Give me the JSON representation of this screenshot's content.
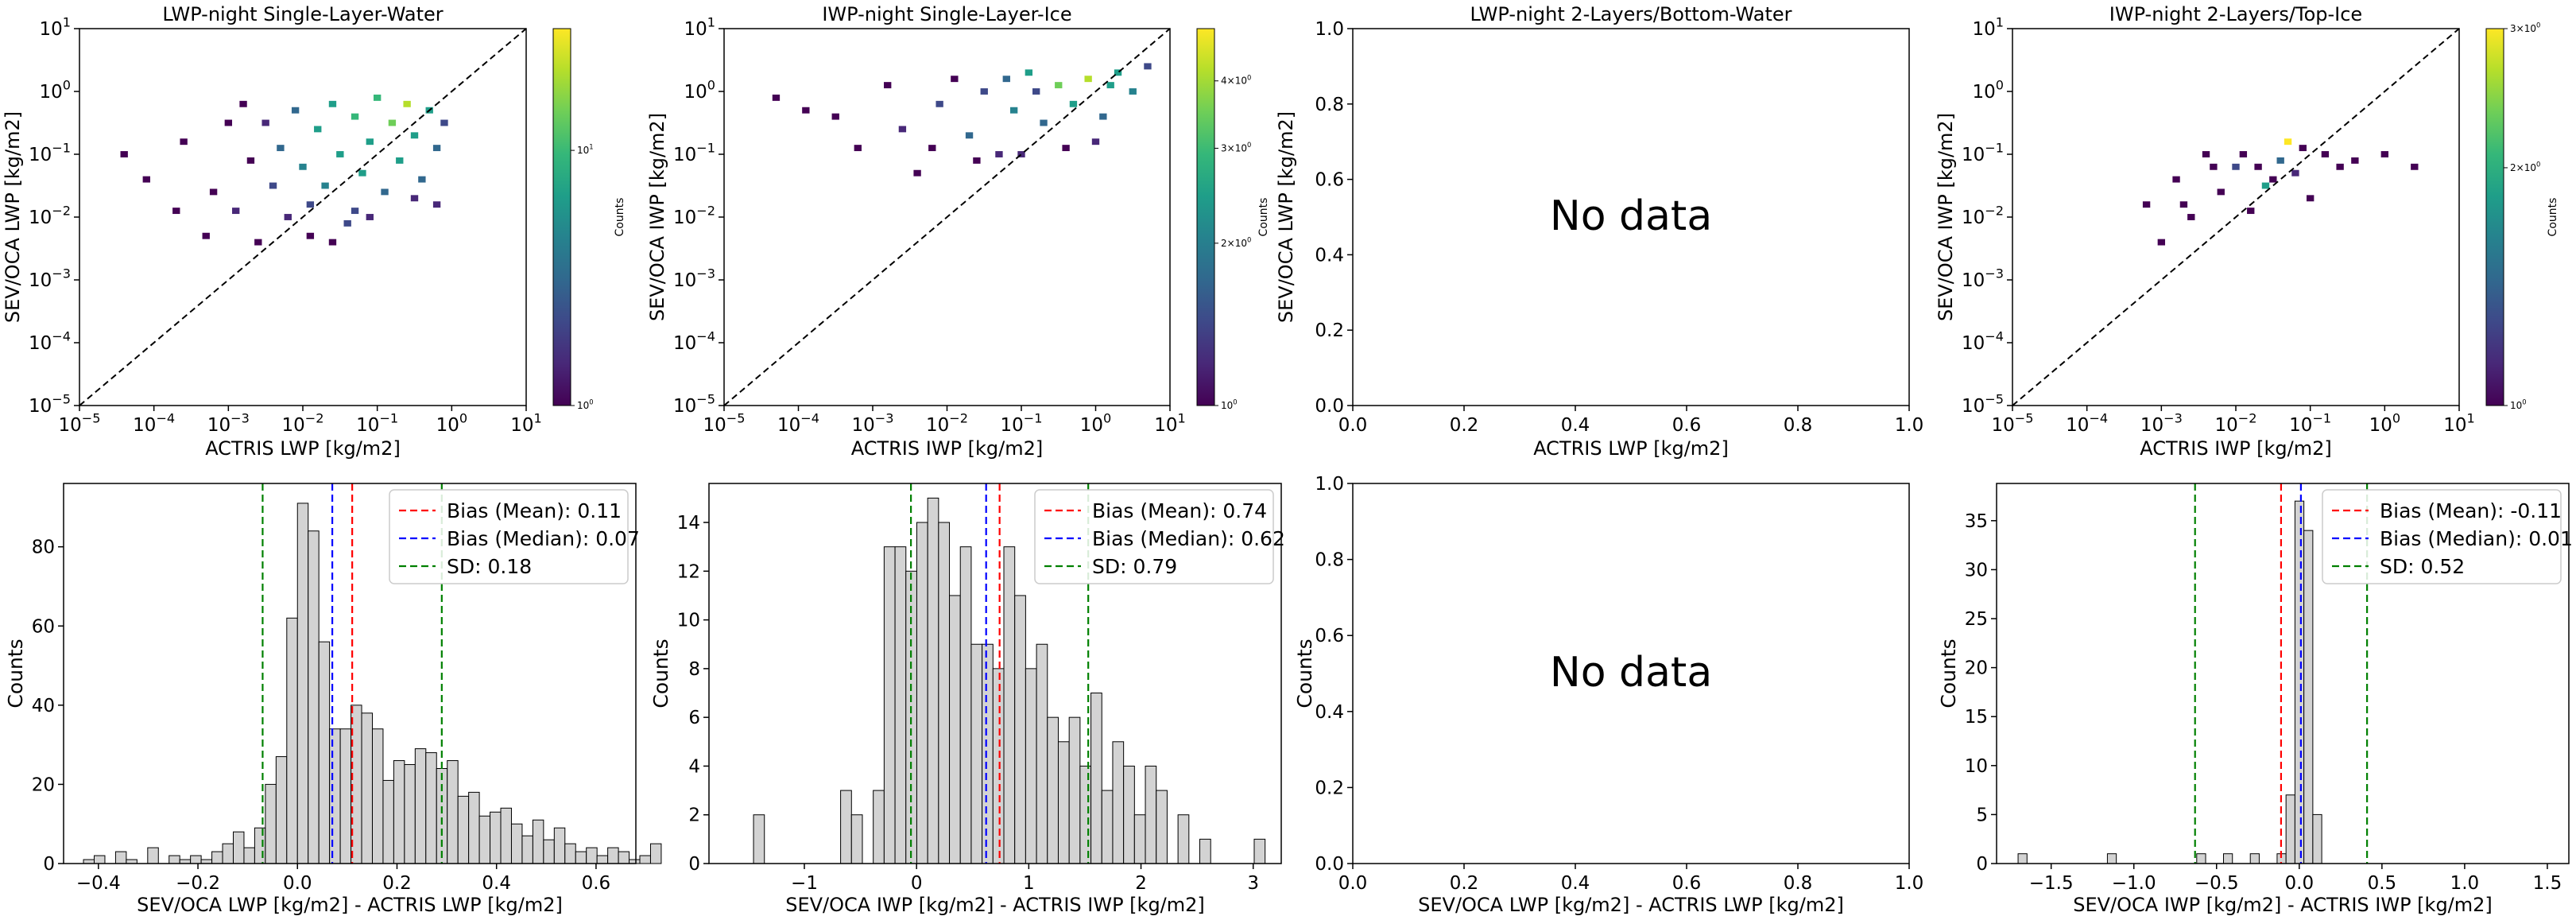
{
  "colors": {
    "hist_fill": "#d3d3d3",
    "hist_edge": "#000000",
    "mean": "#ff0000",
    "median": "#0000ff",
    "sd": "#008000",
    "viridis": [
      "#440154",
      "#482878",
      "#3e4989",
      "#31688e",
      "#26828e",
      "#1f9e89",
      "#35b779",
      "#6ece58",
      "#b5de2b",
      "#fde725"
    ]
  },
  "chart_data": [
    {
      "type": "heatmap",
      "title": "LWP-night Single-Layer-Water",
      "xlabel": "ACTRIS LWP [kg/m2]",
      "ylabel": "SEV/OCA LWP [kg/m2]",
      "xscale": "log",
      "yscale": "log",
      "xlim": [
        1e-05,
        10
      ],
      "ylim": [
        1e-05,
        10
      ],
      "xticks": [
        "10^-5",
        "10^-4",
        "10^-3",
        "10^-2",
        "10^-1",
        "10^0",
        "10^1"
      ],
      "yticks": [
        "10^-5",
        "10^-4",
        "10^-3",
        "10^-2",
        "10^-1",
        "10^0",
        "10^1"
      ],
      "one_to_one_line": true,
      "colorbar": {
        "label": "Counts",
        "scale": "log",
        "range": [
          1,
          30
        ],
        "ticks": [
          "10^0",
          "10^1"
        ]
      },
      "cells": [
        {
          "x": -4.4,
          "y": -1.0,
          "c": 0.0
        },
        {
          "x": -4.1,
          "y": -1.4,
          "c": 0.0
        },
        {
          "x": -3.7,
          "y": -1.9,
          "c": 0.0
        },
        {
          "x": -3.6,
          "y": -0.8,
          "c": 0.0
        },
        {
          "x": -3.3,
          "y": -2.3,
          "c": 0.0
        },
        {
          "x": -3.2,
          "y": -1.6,
          "c": 0.0
        },
        {
          "x": -3.0,
          "y": -0.5,
          "c": 0.0
        },
        {
          "x": -2.9,
          "y": -1.9,
          "c": 0.1
        },
        {
          "x": -2.7,
          "y": -1.1,
          "c": 0.0
        },
        {
          "x": -2.6,
          "y": -2.4,
          "c": 0.0
        },
        {
          "x": -2.5,
          "y": -0.5,
          "c": 0.1
        },
        {
          "x": -2.4,
          "y": -1.5,
          "c": 0.2
        },
        {
          "x": -2.3,
          "y": -0.9,
          "c": 0.3
        },
        {
          "x": -2.2,
          "y": -2.0,
          "c": 0.1
        },
        {
          "x": -2.1,
          "y": -0.3,
          "c": 0.3
        },
        {
          "x": -2.0,
          "y": -1.2,
          "c": 0.4
        },
        {
          "x": -1.9,
          "y": -1.8,
          "c": 0.2
        },
        {
          "x": -1.8,
          "y": -0.6,
          "c": 0.5
        },
        {
          "x": -1.7,
          "y": -1.5,
          "c": 0.4
        },
        {
          "x": -1.6,
          "y": -0.2,
          "c": 0.6
        },
        {
          "x": -1.5,
          "y": -1.0,
          "c": 0.5
        },
        {
          "x": -1.4,
          "y": -2.1,
          "c": 0.2
        },
        {
          "x": -1.3,
          "y": -0.4,
          "c": 0.7
        },
        {
          "x": -1.2,
          "y": -1.3,
          "c": 0.5
        },
        {
          "x": -1.1,
          "y": -0.8,
          "c": 0.6
        },
        {
          "x": -1.0,
          "y": -0.1,
          "c": 0.7
        },
        {
          "x": -0.9,
          "y": -1.6,
          "c": 0.3
        },
        {
          "x": -0.8,
          "y": -0.5,
          "c": 0.8
        },
        {
          "x": -0.7,
          "y": -1.1,
          "c": 0.5
        },
        {
          "x": -0.6,
          "y": -0.2,
          "c": 0.9
        },
        {
          "x": -0.5,
          "y": -0.7,
          "c": 0.6
        },
        {
          "x": -0.4,
          "y": -1.4,
          "c": 0.3
        },
        {
          "x": -0.3,
          "y": -0.3,
          "c": 0.5
        },
        {
          "x": -0.2,
          "y": -0.9,
          "c": 0.3
        },
        {
          "x": -1.3,
          "y": -1.9,
          "c": 0.2
        },
        {
          "x": -1.9,
          "y": -2.3,
          "c": 0.0
        },
        {
          "x": -2.8,
          "y": -0.2,
          "c": 0.0
        },
        {
          "x": -1.6,
          "y": -2.4,
          "c": 0.0
        },
        {
          "x": -0.5,
          "y": -1.7,
          "c": 0.1
        },
        {
          "x": -1.1,
          "y": -2.0,
          "c": 0.1
        },
        {
          "x": -0.2,
          "y": -1.8,
          "c": 0.1
        },
        {
          "x": -0.1,
          "y": -0.5,
          "c": 0.2
        }
      ]
    },
    {
      "type": "heatmap",
      "title": "IWP-night Single-Layer-Ice",
      "xlabel": "ACTRIS IWP [kg/m2]",
      "ylabel": "SEV/OCA IWP [kg/m2]",
      "xscale": "log",
      "yscale": "log",
      "xlim": [
        1e-05,
        10
      ],
      "ylim": [
        1e-05,
        10
      ],
      "xticks": [
        "10^-5",
        "10^-4",
        "10^-3",
        "10^-2",
        "10^-1",
        "10^0",
        "10^1"
      ],
      "yticks": [
        "10^-5",
        "10^-4",
        "10^-3",
        "10^-2",
        "10^-1",
        "10^0",
        "10^1"
      ],
      "one_to_one_line": true,
      "colorbar": {
        "label": "Counts",
        "scale": "log",
        "range": [
          1,
          5
        ],
        "ticks": [
          "10^0",
          "2×10^0",
          "3×10^0",
          "4×10^0"
        ]
      },
      "cells": [
        {
          "x": -4.3,
          "y": -0.1,
          "c": 0.0
        },
        {
          "x": -3.9,
          "y": -0.3,
          "c": 0.0
        },
        {
          "x": -3.5,
          "y": -0.4,
          "c": 0.0
        },
        {
          "x": -3.2,
          "y": -0.9,
          "c": 0.0
        },
        {
          "x": -2.8,
          "y": 0.1,
          "c": 0.0
        },
        {
          "x": -2.6,
          "y": -0.6,
          "c": 0.1
        },
        {
          "x": -2.4,
          "y": -1.3,
          "c": 0.0
        },
        {
          "x": -2.1,
          "y": -0.2,
          "c": 0.2
        },
        {
          "x": -1.9,
          "y": 0.2,
          "c": 0.0
        },
        {
          "x": -1.7,
          "y": -0.7,
          "c": 0.3
        },
        {
          "x": -1.5,
          "y": 0.0,
          "c": 0.2
        },
        {
          "x": -1.3,
          "y": -1.0,
          "c": 0.1
        },
        {
          "x": -1.1,
          "y": -0.3,
          "c": 0.4
        },
        {
          "x": -0.9,
          "y": 0.3,
          "c": 0.6
        },
        {
          "x": -0.7,
          "y": -0.5,
          "c": 0.3
        },
        {
          "x": -0.5,
          "y": 0.1,
          "c": 0.8
        },
        {
          "x": -0.3,
          "y": -0.2,
          "c": 0.5
        },
        {
          "x": -0.1,
          "y": 0.2,
          "c": 0.9
        },
        {
          "x": 0.1,
          "y": -0.4,
          "c": 0.3
        },
        {
          "x": 0.3,
          "y": 0.3,
          "c": 0.6
        },
        {
          "x": 0.5,
          "y": 0.0,
          "c": 0.4
        },
        {
          "x": 0.7,
          "y": 0.4,
          "c": 0.2
        },
        {
          "x": -1.0,
          "y": -1.0,
          "c": 0.1
        },
        {
          "x": -0.4,
          "y": -0.9,
          "c": 0.0
        },
        {
          "x": -1.6,
          "y": -1.1,
          "c": 0.0
        },
        {
          "x": -2.2,
          "y": -0.9,
          "c": 0.0
        },
        {
          "x": 0.0,
          "y": -0.8,
          "c": 0.1
        },
        {
          "x": -0.8,
          "y": 0.0,
          "c": 0.2
        },
        {
          "x": -1.2,
          "y": 0.2,
          "c": 0.3
        },
        {
          "x": 0.2,
          "y": 0.1,
          "c": 0.5
        }
      ]
    },
    {
      "type": "heatmap",
      "title": "LWP-night 2-Layers/Bottom-Water",
      "xlabel": "ACTRIS LWP [kg/m2]",
      "ylabel": "SEV/OCA LWP [kg/m2]",
      "xlim": [
        0.0,
        1.0
      ],
      "ylim": [
        0.0,
        1.0
      ],
      "xticks": [
        "0.0",
        "0.2",
        "0.4",
        "0.6",
        "0.8",
        "1.0"
      ],
      "yticks": [
        "0.0",
        "0.2",
        "0.4",
        "0.6",
        "0.8",
        "1.0"
      ],
      "annotation": "No data",
      "cells": []
    },
    {
      "type": "heatmap",
      "title": "IWP-night 2-Layers/Top-Ice",
      "xlabel": "ACTRIS IWP [kg/m2]",
      "ylabel": "SEV/OCA IWP [kg/m2]",
      "xscale": "log",
      "yscale": "log",
      "xlim": [
        1e-05,
        10
      ],
      "ylim": [
        1e-05,
        10
      ],
      "xticks": [
        "10^-5",
        "10^-4",
        "10^-3",
        "10^-2",
        "10^-1",
        "10^0",
        "10^1"
      ],
      "yticks": [
        "10^-5",
        "10^-4",
        "10^-3",
        "10^-2",
        "10^-1",
        "10^0",
        "10^1"
      ],
      "one_to_one_line": true,
      "colorbar": {
        "label": "Counts",
        "scale": "log",
        "range": [
          1,
          3
        ],
        "ticks": [
          "10^0",
          "2×10^0",
          "3×10^0"
        ]
      },
      "cells": [
        {
          "x": -3.2,
          "y": -1.8,
          "c": 0.0
        },
        {
          "x": -3.0,
          "y": -2.4,
          "c": 0.0
        },
        {
          "x": -2.8,
          "y": -1.4,
          "c": 0.0
        },
        {
          "x": -2.6,
          "y": -2.0,
          "c": 0.0
        },
        {
          "x": -2.4,
          "y": -1.0,
          "c": 0.0
        },
        {
          "x": -2.2,
          "y": -1.6,
          "c": 0.0
        },
        {
          "x": -2.0,
          "y": -1.2,
          "c": 0.2
        },
        {
          "x": -1.8,
          "y": -1.9,
          "c": 0.0
        },
        {
          "x": -1.6,
          "y": -1.5,
          "c": 0.6
        },
        {
          "x": -1.4,
          "y": -1.1,
          "c": 0.3
        },
        {
          "x": -1.2,
          "y": -1.3,
          "c": 0.1
        },
        {
          "x": -1.0,
          "y": -1.7,
          "c": 0.0
        },
        {
          "x": -0.8,
          "y": -1.0,
          "c": 0.0
        },
        {
          "x": -0.6,
          "y": -1.2,
          "c": 0.0
        },
        {
          "x": -0.4,
          "y": -1.1,
          "c": 0.0
        },
        {
          "x": 0.0,
          "y": -1.0,
          "c": 0.0
        },
        {
          "x": 0.4,
          "y": -1.2,
          "c": 0.0
        },
        {
          "x": -2.3,
          "y": -1.2,
          "c": 0.0
        },
        {
          "x": -1.9,
          "y": -1.0,
          "c": 0.0
        },
        {
          "x": -1.3,
          "y": -0.8,
          "c": 1.0
        },
        {
          "x": -1.7,
          "y": -1.2,
          "c": 0.0
        },
        {
          "x": -1.1,
          "y": -0.9,
          "c": 0.0
        },
        {
          "x": -2.7,
          "y": -1.8,
          "c": 0.0
        },
        {
          "x": -1.5,
          "y": -1.4,
          "c": 0.0
        }
      ]
    },
    {
      "type": "bar",
      "subtype": "histogram",
      "xlabel": "SEV/OCA LWP [kg/m2] - ACTRIS LWP [kg/m2]",
      "ylabel": "Counts",
      "xlim": [
        -0.47,
        0.68
      ],
      "ylim": [
        0,
        96
      ],
      "xticks": [
        "−0.4",
        "−0.2",
        "0.0",
        "0.2",
        "0.4",
        "0.6"
      ],
      "xtick_values": [
        -0.4,
        -0.2,
        0.0,
        0.2,
        0.4,
        0.6
      ],
      "yticks": [
        "0",
        "20",
        "40",
        "60",
        "80"
      ],
      "ytick_values": [
        0,
        20,
        40,
        60,
        80
      ],
      "bin_start": -0.43,
      "bin_width": 0.0215,
      "values": [
        1,
        2,
        0,
        3,
        1,
        0,
        4,
        0,
        2,
        1,
        2,
        1,
        3,
        5,
        8,
        4,
        9,
        20,
        27,
        62,
        91,
        84,
        56,
        34,
        34,
        40,
        38,
        34,
        21,
        26,
        25,
        29,
        28,
        24,
        26,
        17,
        18,
        12,
        13,
        14,
        10,
        7,
        11,
        6,
        9,
        5,
        3,
        4,
        2,
        4,
        3,
        1,
        2,
        5
      ],
      "mean_label": "Bias (Mean): 0.11",
      "mean": 0.11,
      "median_label": "Bias (Median): 0.07",
      "median": 0.07,
      "sd_label": "SD: 0.18",
      "sd_lines": [
        -0.07,
        0.29
      ]
    },
    {
      "type": "bar",
      "subtype": "histogram",
      "xlabel": "SEV/OCA IWP [kg/m2] - ACTRIS IWP [kg/m2]",
      "ylabel": "Counts",
      "xlim": [
        -1.85,
        3.25
      ],
      "ylim": [
        0,
        15.6
      ],
      "xticks": [
        "−1",
        "0",
        "1",
        "2",
        "3"
      ],
      "xtick_values": [
        -1,
        0,
        1,
        2,
        3
      ],
      "yticks": [
        "0",
        "2",
        "4",
        "6",
        "8",
        "10",
        "12",
        "14"
      ],
      "ytick_values": [
        0,
        2,
        4,
        6,
        8,
        10,
        12,
        14
      ],
      "bin_start": -1.55,
      "bin_width": 0.097,
      "values": [
        0,
        2,
        0,
        0,
        0,
        0,
        0,
        0,
        0,
        3,
        2,
        0,
        3,
        13,
        13,
        12,
        14,
        15,
        14,
        11,
        13,
        9,
        9,
        8,
        13,
        11,
        8,
        9,
        6,
        5,
        6,
        4,
        7,
        3,
        5,
        4,
        2,
        4,
        3,
        0,
        2,
        0,
        1,
        0,
        0,
        0,
        0,
        1
      ],
      "mean_label": "Bias (Mean): 0.74",
      "mean": 0.74,
      "median_label": "Bias (Median): 0.62",
      "median": 0.62,
      "sd_label": "SD: 0.79",
      "sd_lines": [
        -0.05,
        1.53
      ]
    },
    {
      "type": "bar",
      "subtype": "histogram",
      "xlabel": "SEV/OCA LWP [kg/m2] - ACTRIS LWP [kg/m2]",
      "ylabel": "Counts",
      "xlim": [
        0.0,
        1.0
      ],
      "ylim": [
        0.0,
        1.0
      ],
      "xticks": [
        "0.0",
        "0.2",
        "0.4",
        "0.6",
        "0.8",
        "1.0"
      ],
      "yticks": [
        "0.0",
        "0.2",
        "0.4",
        "0.6",
        "0.8",
        "1.0"
      ],
      "annotation": "No data",
      "values": []
    },
    {
      "type": "bar",
      "subtype": "histogram",
      "xlabel": "SEV/OCA IWP [kg/m2] - ACTRIS IWP [kg/m2]",
      "ylabel": "Counts",
      "xlim": [
        -1.83,
        1.63
      ],
      "ylim": [
        0,
        38.8
      ],
      "xticks": [
        "−1.5",
        "−1.0",
        "−0.5",
        "0.0",
        "0.5",
        "1.0",
        "1.5"
      ],
      "xtick_values": [
        -1.5,
        -1.0,
        -0.5,
        0.0,
        0.5,
        1.0,
        1.5
      ],
      "yticks": [
        "0",
        "5",
        "10",
        "15",
        "20",
        "25",
        "30",
        "35"
      ],
      "ytick_values": [
        0,
        5,
        10,
        15,
        20,
        25,
        30,
        35
      ],
      "bin_start": -1.7,
      "bin_width": 0.054,
      "values": [
        1,
        0,
        0,
        0,
        0,
        0,
        0,
        0,
        0,
        0,
        1,
        0,
        0,
        0,
        0,
        0,
        0,
        0,
        0,
        0,
        1,
        0,
        0,
        1,
        0,
        0,
        1,
        0,
        0,
        1,
        7,
        37,
        34,
        5
      ],
      "mean_label": "Bias (Mean): -0.11",
      "mean": -0.11,
      "median_label": "Bias (Median): 0.01",
      "median": 0.01,
      "sd_label": "SD: 0.52",
      "sd_lines": [
        -0.63,
        0.41
      ]
    }
  ]
}
